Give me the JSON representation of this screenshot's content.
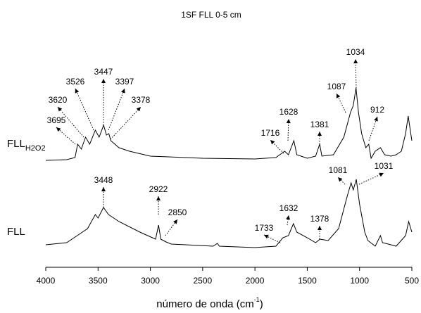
{
  "chart_data": {
    "type": "line",
    "title": "1SF FLL 0-5 cm",
    "xlabel": "número de onda (cm",
    "xlabel_sup": "-1",
    "xlabel_end": ")",
    "xlim": [
      4000,
      500
    ],
    "xticks": [
      4000,
      3500,
      3000,
      2500,
      2000,
      1500,
      1000,
      500
    ],
    "ylim": [
      0,
      340
    ],
    "series": [
      {
        "name": "FLL",
        "name_subscript": "H2O2",
        "color": "#000000",
        "x": [
          4000,
          3800,
          3720,
          3695,
          3660,
          3620,
          3580,
          3526,
          3490,
          3447,
          3420,
          3397,
          3378,
          3300,
          3200,
          3000,
          2500,
          2000,
          1800,
          1716,
          1680,
          1628,
          1600,
          1500,
          1420,
          1381,
          1360,
          1250,
          1150,
          1087,
          1060,
          1034,
          1010,
          980,
          940,
          912,
          890,
          850,
          800,
          760,
          700,
          650,
          600,
          560,
          535,
          510,
          500
        ],
        "values": [
          152,
          153,
          156,
          175,
          168,
          185,
          175,
          195,
          185,
          202,
          188,
          190,
          180,
          170,
          165,
          158,
          155,
          154,
          156,
          165,
          160,
          180,
          160,
          155,
          158,
          175,
          158,
          160,
          185,
          220,
          230,
          255,
          220,
          190,
          170,
          175,
          155,
          165,
          170,
          160,
          158,
          160,
          165,
          190,
          215,
          190,
          180
        ]
      },
      {
        "name": "FLL",
        "color": "#000000",
        "x": [
          4000,
          3800,
          3700,
          3600,
          3526,
          3500,
          3448,
          3400,
          3300,
          3100,
          2950,
          2922,
          2900,
          2850,
          2800,
          2400,
          2360,
          2340,
          2000,
          1800,
          1733,
          1680,
          1632,
          1600,
          1500,
          1420,
          1378,
          1300,
          1200,
          1120,
          1081,
          1060,
          1031,
          1000,
          950,
          920,
          850,
          800,
          780,
          700,
          650,
          560,
          530,
          500
        ],
        "values": [
          32,
          35,
          45,
          55,
          75,
          70,
          85,
          75,
          65,
          50,
          40,
          60,
          40,
          36,
          33,
          30,
          34,
          30,
          28,
          30,
          42,
          45,
          62,
          50,
          42,
          35,
          40,
          38,
          55,
          100,
          120,
          110,
          125,
          90,
          50,
          38,
          30,
          45,
          35,
          32,
          30,
          45,
          65,
          50
        ]
      }
    ],
    "annotations": [
      {
        "label": "3695",
        "x": 3695,
        "series": 0
      },
      {
        "label": "3620",
        "x": 3620,
        "series": 0
      },
      {
        "label": "3526",
        "x": 3526,
        "series": 0
      },
      {
        "label": "3447",
        "x": 3447,
        "series": 0
      },
      {
        "label": "3397",
        "x": 3397,
        "series": 0
      },
      {
        "label": "3378",
        "x": 3378,
        "series": 0
      },
      {
        "label": "1716",
        "x": 1716,
        "series": 0
      },
      {
        "label": "1628",
        "x": 1628,
        "series": 0
      },
      {
        "label": "1381",
        "x": 1381,
        "series": 0
      },
      {
        "label": "1087",
        "x": 1087,
        "series": 0
      },
      {
        "label": "1034",
        "x": 1034,
        "series": 0
      },
      {
        "label": "912",
        "x": 912,
        "series": 0
      },
      {
        "label": "3448",
        "x": 3448,
        "series": 1
      },
      {
        "label": "2922",
        "x": 2922,
        "series": 1
      },
      {
        "label": "2850",
        "x": 2850,
        "series": 1
      },
      {
        "label": "1733",
        "x": 1733,
        "series": 1
      },
      {
        "label": "1632",
        "x": 1632,
        "series": 1
      },
      {
        "label": "1378",
        "x": 1378,
        "series": 1
      },
      {
        "label": "1081",
        "x": 1081,
        "series": 1
      },
      {
        "label": "1031",
        "x": 1031,
        "series": 1
      }
    ]
  }
}
